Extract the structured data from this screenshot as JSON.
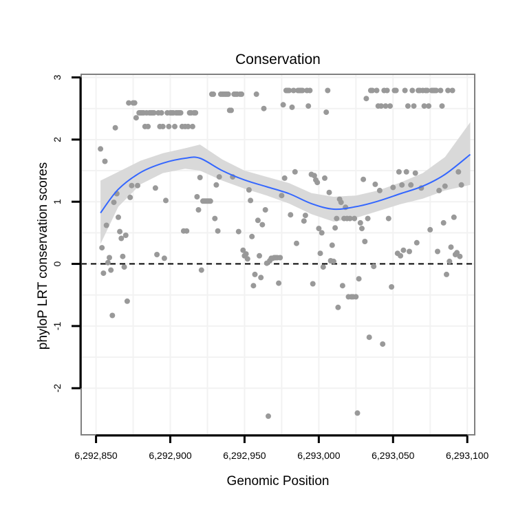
{
  "chart_data": {
    "type": "scatter",
    "title": "Conservation",
    "xlabel": "Genomic Position",
    "ylabel": "phyloP LRT conservation scores",
    "xlim": [
      6292840,
      6293105
    ],
    "ylim": [
      -2.75,
      3.05
    ],
    "x_ticks": [
      6292850,
      6292900,
      6292950,
      6293000,
      6293050,
      6293100
    ],
    "x_tick_labels": [
      "6,292,850",
      "6,292,900",
      "6,292,950",
      "6,293,000",
      "6,293,050",
      "6,293,100"
    ],
    "y_ticks": [
      -2,
      -1,
      0,
      1,
      2,
      3
    ],
    "y_tick_labels": [
      "-2",
      "-1",
      "0",
      "1",
      "2",
      "3"
    ],
    "reference_line": {
      "y": 0,
      "style": "dashed"
    },
    "grid": true,
    "colors": {
      "points": "#999999",
      "smooth_line": "#3366ff",
      "ribbon": "#d9d9d9",
      "grid": "#f2f2f2",
      "panel_border": "#7f7f7f",
      "reference": "#000000"
    },
    "points": [
      [
        6292853,
        1.85
      ],
      [
        6292854,
        0.26
      ],
      [
        6292855,
        -0.15
      ],
      [
        6292856,
        1.65
      ],
      [
        6292857,
        0.62
      ],
      [
        6292858,
        0.02
      ],
      [
        6292859,
        0.1
      ],
      [
        6292860,
        -0.1
      ],
      [
        6292861,
        -0.83
      ],
      [
        6292862,
        0.99
      ],
      [
        6292863,
        2.19
      ],
      [
        6292864,
        1.13
      ],
      [
        6292865,
        0.75
      ],
      [
        6292866,
        0.52
      ],
      [
        6292867,
        0.41
      ],
      [
        6292868,
        0.12
      ],
      [
        6292869,
        -0.05
      ],
      [
        6292870,
        0.46
      ],
      [
        6292871,
        -0.6
      ],
      [
        6292872,
        2.59
      ],
      [
        6292873,
        1.07
      ],
      [
        6292874,
        1.26
      ],
      [
        6292875,
        2.59
      ],
      [
        6292876,
        2.59
      ],
      [
        6292877,
        2.35
      ],
      [
        6292878,
        1.26
      ],
      [
        6292879,
        2.43
      ],
      [
        6292880,
        2.43
      ],
      [
        6292881,
        2.43
      ],
      [
        6292882,
        2.43
      ],
      [
        6292883,
        2.21
      ],
      [
        6292884,
        2.43
      ],
      [
        6292885,
        2.21
      ],
      [
        6292886,
        2.43
      ],
      [
        6292887,
        2.43
      ],
      [
        6292888,
        2.43
      ],
      [
        6292889,
        2.43
      ],
      [
        6292890,
        1.22
      ],
      [
        6292891,
        0.15
      ],
      [
        6292892,
        2.43
      ],
      [
        6292893,
        2.21
      ],
      [
        6292894,
        2.43
      ],
      [
        6292895,
        2.21
      ],
      [
        6292896,
        0.09
      ],
      [
        6292897,
        1.02
      ],
      [
        6292898,
        2.43
      ],
      [
        6292899,
        2.21
      ],
      [
        6292900,
        2.43
      ],
      [
        6292901,
        2.43
      ],
      [
        6292902,
        2.43
      ],
      [
        6292903,
        2.21
      ],
      [
        6292904,
        2.43
      ],
      [
        6292905,
        2.43
      ],
      [
        6292906,
        2.43
      ],
      [
        6292907,
        2.43
      ],
      [
        6292908,
        2.21
      ],
      [
        6292909,
        0.53
      ],
      [
        6292910,
        2.21
      ],
      [
        6292911,
        0.53
      ],
      [
        6292912,
        2.21
      ],
      [
        6292913,
        2.43
      ],
      [
        6292914,
        2.43
      ],
      [
        6292915,
        2.21
      ],
      [
        6292916,
        2.43
      ],
      [
        6292917,
        2.43
      ],
      [
        6292918,
        1.08
      ],
      [
        6292919,
        0.87
      ],
      [
        6292920,
        1.39
      ],
      [
        6292921,
        -0.1
      ],
      [
        6292922,
        1.01
      ],
      [
        6292923,
        1.01
      ],
      [
        6292924,
        1.01
      ],
      [
        6292925,
        1.01
      ],
      [
        6292926,
        1.01
      ],
      [
        6292927,
        1.01
      ],
      [
        6292928,
        2.73
      ],
      [
        6292929,
        2.73
      ],
      [
        6292930,
        0.73
      ],
      [
        6292931,
        1.27
      ],
      [
        6292932,
        0.53
      ],
      [
        6292933,
        1.4
      ],
      [
        6292934,
        2.73
      ],
      [
        6292935,
        2.73
      ],
      [
        6292936,
        2.73
      ],
      [
        6292937,
        2.73
      ],
      [
        6292938,
        2.73
      ],
      [
        6292939,
        2.73
      ],
      [
        6292940,
        2.47
      ],
      [
        6292941,
        2.47
      ],
      [
        6292942,
        1.4
      ],
      [
        6292943,
        2.73
      ],
      [
        6292944,
        2.73
      ],
      [
        6292945,
        2.73
      ],
      [
        6292946,
        0.52
      ],
      [
        6292947,
        2.73
      ],
      [
        6292948,
        2.73
      ],
      [
        6292949,
        0.22
      ],
      [
        6292950,
        0.13
      ],
      [
        6292951,
        0.16
      ],
      [
        6292952,
        0.08
      ],
      [
        6292953,
        1.19
      ],
      [
        6292954,
        1.02
      ],
      [
        6292955,
        0.44
      ],
      [
        6292956,
        -0.35
      ],
      [
        6292957,
        -0.17
      ],
      [
        6292958,
        2.73
      ],
      [
        6292959,
        0.7
      ],
      [
        6292960,
        0.13
      ],
      [
        6292961,
        -0.22
      ],
      [
        6292962,
        0.63
      ],
      [
        6292963,
        2.5
      ],
      [
        6292964,
        0.87
      ],
      [
        6292965,
        0.01
      ],
      [
        6292966,
        -2.45
      ],
      [
        6292967,
        0.05
      ],
      [
        6292968,
        0.09
      ],
      [
        6292969,
        0.09
      ],
      [
        6292970,
        0.1
      ],
      [
        6292971,
        0.1
      ],
      [
        6292972,
        0.1
      ],
      [
        6292973,
        -0.31
      ],
      [
        6292974,
        0.1
      ],
      [
        6292975,
        1.1
      ],
      [
        6292976,
        2.56
      ],
      [
        6292977,
        1.38
      ],
      [
        6292978,
        2.79
      ],
      [
        6292979,
        2.79
      ],
      [
        6292980,
        2.79
      ],
      [
        6292981,
        0.79
      ],
      [
        6292982,
        2.52
      ],
      [
        6292983,
        2.79
      ],
      [
        6292984,
        1.48
      ],
      [
        6292985,
        0.33
      ],
      [
        6292986,
        2.79
      ],
      [
        6292987,
        2.79
      ],
      [
        6292988,
        2.79
      ],
      [
        6292989,
        2.79
      ],
      [
        6292990,
        0.69
      ],
      [
        6292991,
        0.78
      ],
      [
        6292992,
        2.79
      ],
      [
        6292993,
        2.54
      ],
      [
        6292994,
        2.79
      ],
      [
        6292995,
        1.44
      ],
      [
        6292996,
        -0.32
      ],
      [
        6292997,
        1.42
      ],
      [
        6292998,
        1.35
      ],
      [
        6292999,
        1.31
      ],
      [
        6293000,
        0.57
      ],
      [
        6293001,
        0.17
      ],
      [
        6293002,
        0.5
      ],
      [
        6293003,
        -0.05
      ],
      [
        6293004,
        1.38
      ],
      [
        6293005,
        2.44
      ],
      [
        6293006,
        2.79
      ],
      [
        6293007,
        1.15
      ],
      [
        6293008,
        0.05
      ],
      [
        6293009,
        0.3
      ],
      [
        6293010,
        0.04
      ],
      [
        6293011,
        0.58
      ],
      [
        6293012,
        0.73
      ],
      [
        6293013,
        -0.7
      ],
      [
        6293014,
        1.04
      ],
      [
        6293015,
        0.99
      ],
      [
        6293016,
        -0.35
      ],
      [
        6293017,
        0.73
      ],
      [
        6293018,
        0.91
      ],
      [
        6293019,
        0.73
      ],
      [
        6293020,
        -0.53
      ],
      [
        6293021,
        0.73
      ],
      [
        6293022,
        -0.53
      ],
      [
        6293023,
        -0.53
      ],
      [
        6293024,
        0.73
      ],
      [
        6293025,
        -0.53
      ],
      [
        6293026,
        -2.4
      ],
      [
        6293027,
        -0.24
      ],
      [
        6293028,
        0.66
      ],
      [
        6293029,
        0.57
      ],
      [
        6293030,
        1.36
      ],
      [
        6293031,
        0.36
      ],
      [
        6293032,
        2.66
      ],
      [
        6293033,
        0.73
      ],
      [
        6293034,
        -1.18
      ],
      [
        6293035,
        2.79
      ],
      [
        6293036,
        2.79
      ],
      [
        6293037,
        -0.04
      ],
      [
        6293038,
        1.28
      ],
      [
        6293039,
        2.79
      ],
      [
        6293040,
        2.54
      ],
      [
        6293041,
        1.18
      ],
      [
        6293042,
        2.54
      ],
      [
        6293043,
        -1.29
      ],
      [
        6293044,
        2.79
      ],
      [
        6293045,
        2.54
      ],
      [
        6293046,
        2.79
      ],
      [
        6293047,
        0.73
      ],
      [
        6293048,
        2.54
      ],
      [
        6293049,
        -0.37
      ],
      [
        6293050,
        1.23
      ],
      [
        6293051,
        2.79
      ],
      [
        6293052,
        2.79
      ],
      [
        6293053,
        0.17
      ],
      [
        6293054,
        1.48
      ],
      [
        6293055,
        0.13
      ],
      [
        6293056,
        1.27
      ],
      [
        6293057,
        0.22
      ],
      [
        6293058,
        2.79
      ],
      [
        6293059,
        1.48
      ],
      [
        6293060,
        2.54
      ],
      [
        6293061,
        0.2
      ],
      [
        6293062,
        1.27
      ],
      [
        6293063,
        2.79
      ],
      [
        6293064,
        2.54
      ],
      [
        6293065,
        1.46
      ],
      [
        6293066,
        0.34
      ],
      [
        6293067,
        2.79
      ],
      [
        6293068,
        2.79
      ],
      [
        6293069,
        1.22
      ],
      [
        6293070,
        2.79
      ],
      [
        6293071,
        2.54
      ],
      [
        6293072,
        2.79
      ],
      [
        6293073,
        2.79
      ],
      [
        6293074,
        2.54
      ],
      [
        6293075,
        0.55
      ],
      [
        6293076,
        2.79
      ],
      [
        6293077,
        2.79
      ],
      [
        6293078,
        2.79
      ],
      [
        6293079,
        2.79
      ],
      [
        6293080,
        0.2
      ],
      [
        6293081,
        1.18
      ],
      [
        6293082,
        2.79
      ],
      [
        6293083,
        2.54
      ],
      [
        6293084,
        0.66
      ],
      [
        6293085,
        1.25
      ],
      [
        6293086,
        -0.17
      ],
      [
        6293087,
        2.79
      ],
      [
        6293088,
        0.04
      ],
      [
        6293089,
        0.27
      ],
      [
        6293090,
        2.79
      ],
      [
        6293091,
        0.75
      ],
      [
        6293092,
        0.15
      ],
      [
        6293093,
        0.18
      ],
      [
        6293094,
        1.48
      ],
      [
        6293095,
        0.12
      ],
      [
        6293096,
        1.27
      ]
    ],
    "smooth": {
      "x": [
        6292853,
        6292865,
        6292880,
        6292895,
        6292910,
        6292920,
        6292935,
        6292950,
        6292965,
        6292980,
        6292995,
        6293010,
        6293025,
        6293040,
        6293055,
        6293070,
        6293085,
        6293102
      ],
      "y": [
        0.82,
        1.2,
        1.47,
        1.62,
        1.7,
        1.7,
        1.5,
        1.35,
        1.24,
        1.13,
        0.97,
        0.88,
        0.92,
        1.01,
        1.13,
        1.25,
        1.44,
        1.76
      ],
      "lower": [
        0.32,
        0.92,
        1.28,
        1.46,
        1.53,
        1.5,
        1.34,
        1.21,
        1.1,
        0.97,
        0.8,
        0.68,
        0.74,
        0.85,
        0.96,
        1.05,
        1.18,
        1.27
      ],
      "upper": [
        1.34,
        1.48,
        1.66,
        1.78,
        1.86,
        1.92,
        1.68,
        1.5,
        1.4,
        1.3,
        1.14,
        1.08,
        1.1,
        1.18,
        1.31,
        1.46,
        1.72,
        2.28
      ]
    }
  }
}
